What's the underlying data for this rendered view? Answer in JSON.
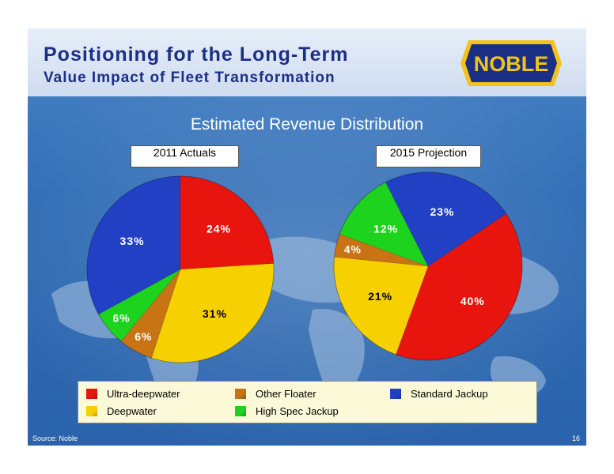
{
  "header": {
    "title": "Positioning for the Long-Term",
    "subtitle": "Value Impact of Fleet Transformation",
    "logo_text": "NOBLE"
  },
  "footer": {
    "source": "Source: Noble",
    "page_number": "16"
  },
  "colors": {
    "ultra_deepwater": "#e8150f",
    "deepwater": "#f7d000",
    "other_floater": "#c87414",
    "high_spec_jackup": "#1ed31e",
    "standard_jackup": "#2240c4",
    "title_blue": "#1c2f86"
  },
  "chart_data": {
    "type": "pie",
    "title": "Estimated Revenue Distribution",
    "legend_position": "bottom",
    "categories": [
      "Ultra-deepwater",
      "Deepwater",
      "Other Floater",
      "High Spec Jackup",
      "Standard Jackup"
    ],
    "series": [
      {
        "name": "2011 Actuals",
        "values": [
          24,
          31,
          6,
          6,
          33
        ],
        "labels": [
          "24%",
          "31%",
          "6%",
          "6%",
          "33%"
        ]
      },
      {
        "name": "2015 Projection",
        "values": [
          40,
          21,
          4,
          12,
          23
        ],
        "labels": [
          "40%",
          "21%",
          "4%",
          "12%",
          "23%"
        ]
      }
    ]
  }
}
